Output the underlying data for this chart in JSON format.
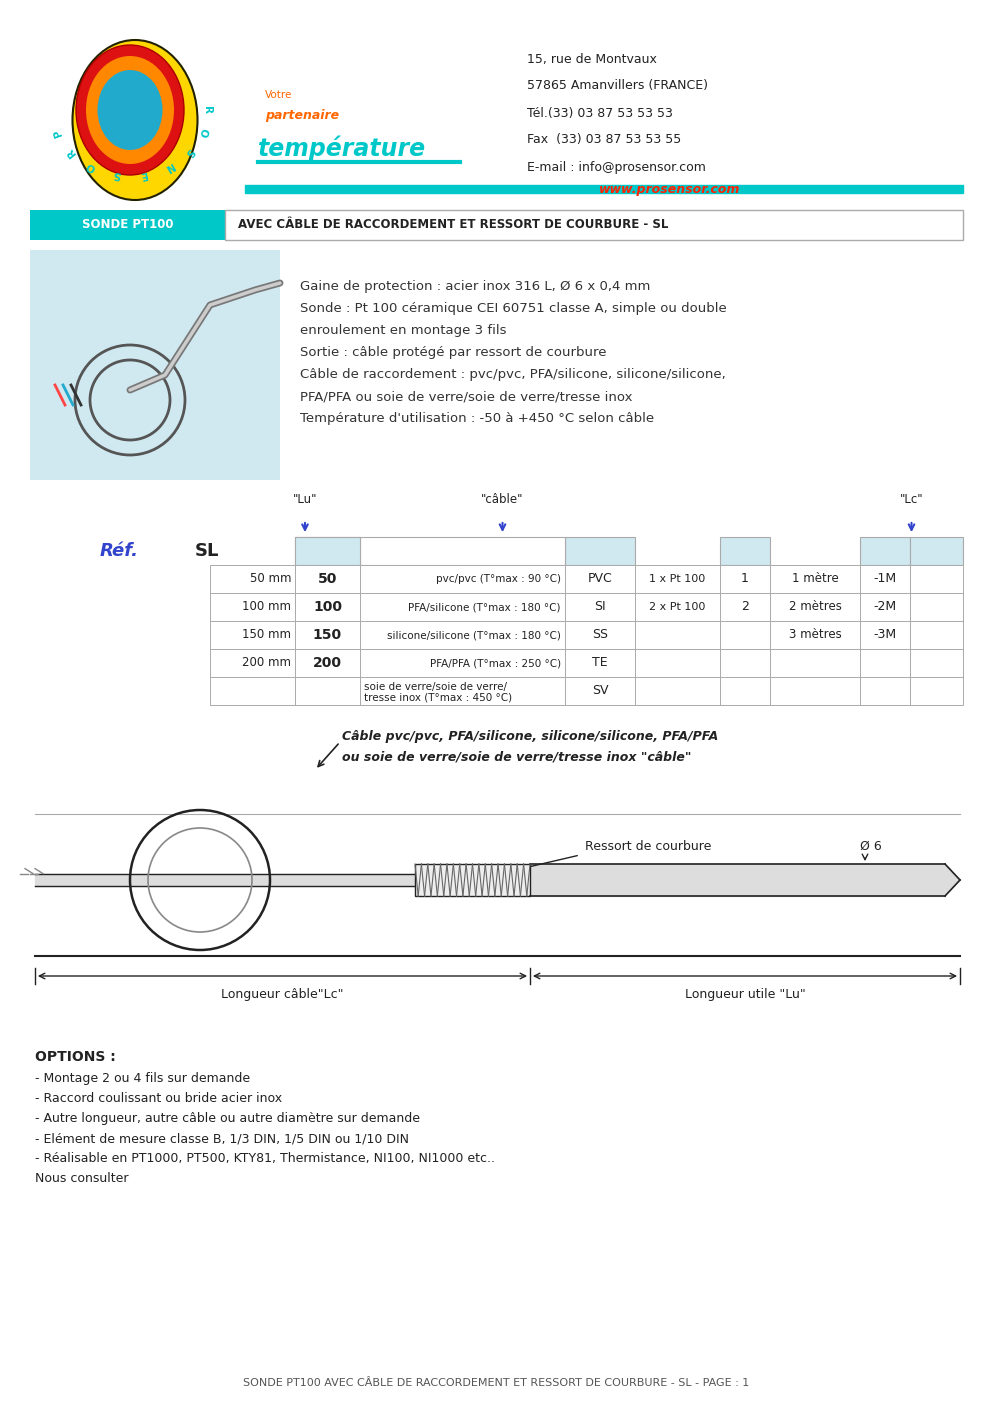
{
  "address_line1": "15, rue de Montvaux",
  "address_line2": "57865 Amanvillers (FRANCE)",
  "address_line3": "Tél.(33) 03 87 53 53 53",
  "address_line4": "Fax  (33) 03 87 53 53 55",
  "address_line5": "E-mail : info@prosensor.com",
  "website": "www.prosensor.com",
  "header_label": "SONDE PT100",
  "header_desc": "AVEC CÂBLE DE RACCORDEMENT ET RESSORT DE COURBURE - SL",
  "desc_lines": [
    "Gaine de protection : acier inox 316 L, Ø 6 x 0,4 mm",
    "Sonde : Pt 100 céramique CEI 60751 classe A, simple ou double",
    "enroulement en montage 3 fils",
    "Sortie : câble protégé par ressort de courbure",
    "Câble de raccordement : pvc/pvc, PFA/silicone, silicone/silicone,",
    "PFA/PFA ou soie de verre/soie de verre/tresse inox",
    "Température d'utilisation : -50 à +450 °C selon câble"
  ],
  "table_lu_label": "\"Lu\"",
  "table_cable_label": "\"câble\"",
  "table_lc_label": "\"Lc\"",
  "ref_label": "Réf.",
  "sl_label": "SL",
  "rows_left": [
    [
      "50 mm",
      "50"
    ],
    [
      "100 mm",
      "100"
    ],
    [
      "150 mm",
      "150"
    ],
    [
      "200 mm",
      "200"
    ]
  ],
  "rows_mid_cable": [
    "pvc/pvc (T°max : 90 °C)",
    "PFA/silicone (T°max : 180 °C)",
    "silicone/silicone (T°max : 180 °C)",
    "PFA/PFA (T°max : 250 °C)",
    "soie de verre/soie de verre/"
  ],
  "rows_mid_cable_line2": [
    "",
    "",
    "",
    "",
    "tresse inox (T°max : 450 °C)"
  ],
  "rows_mid_code": [
    "PVC",
    "SI",
    "SS",
    "TE",
    "SV"
  ],
  "rows_sensor": [
    "1 x Pt 100",
    "2 x Pt 100",
    "",
    "",
    ""
  ],
  "rows_n": [
    "1",
    "2",
    "",
    "",
    ""
  ],
  "rows_length": [
    "1 mètre",
    "2 mètres",
    "3 mètres",
    "",
    ""
  ],
  "rows_lc": [
    "-1M",
    "-2M",
    "-3M",
    "",
    ""
  ],
  "diagram_cable_label": "Câble pvc/pvc, PFA/silicone, silicone/silicone, PFA/PFA",
  "diagram_cable_label2": "ou soie de verre/soie de verre/tresse inox \"câble\"",
  "diagram_ressort_label": "Ressort de courbure",
  "diagram_diam_label": "Ø 6",
  "diagram_lc_label": "Longueur câble\"Lc\"",
  "diagram_lu_label": "Longueur utile \"Lu\"",
  "options_title": "OPTIONS :",
  "options_lines": [
    "- Montage 2 ou 4 fils sur demande",
    "- Raccord coulissant ou bride acier inox",
    "- Autre longueur, autre câble ou autre diamètre sur demande",
    "- Elément de mesure classe B, 1/3 DIN, 1/5 DIN ou 1/10 DIN",
    "- Réalisable en PT1000, PT500, KTY81, Thermistance, NI100, NI1000 etc..",
    "Nous consulter"
  ],
  "footer_text": "SONDE PT100 AVEC CÂBLE DE RACCORDEMENT ET RESSORT DE COURBURE - SL - PAGE : 1",
  "cyan": "#00C8C8",
  "orange": "#FF6600",
  "red": "#FF2200",
  "blue": "#3344CC",
  "dark": "#222222",
  "gray": "#888888",
  "light_blue_fill": "#D0E8F0"
}
